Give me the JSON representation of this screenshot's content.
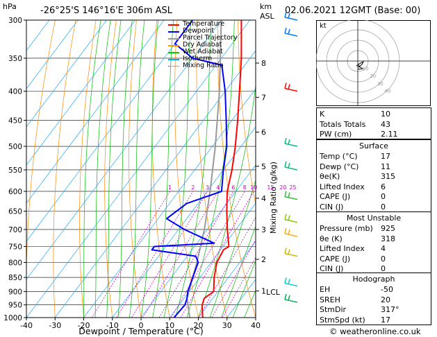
{
  "header": {
    "hpa_label": "hPa",
    "location": "-26°25'S  146°16'E  306m  ASL",
    "km_label": "km",
    "asl_label": "ASL",
    "datetime": "02.06.2021  12GMT  (Base: 00)"
  },
  "axis": {
    "xlabel": "Dewpoint / Temperature (°C)",
    "ylabel_right": "Mixing Ratio (g/kg)",
    "x_ticks": [
      "-40",
      "-30",
      "-20",
      "-10",
      "0",
      "10",
      "20",
      "30",
      "40"
    ],
    "p_ticks": [
      "300",
      "350",
      "400",
      "450",
      "500",
      "550",
      "600",
      "650",
      "700",
      "750",
      "800",
      "850",
      "900",
      "950",
      "1000"
    ],
    "km_ticks": [
      "8",
      "7",
      "6",
      "5",
      "4",
      "3",
      "2",
      "1"
    ],
    "lcl_label": "LCL",
    "mixing_ratio_labels": [
      "1",
      "2",
      "3",
      "4",
      "6",
      "8",
      "10",
      "15",
      "20",
      "25"
    ]
  },
  "legend": {
    "items": [
      {
        "label": "Temperature",
        "color": "#ff0000",
        "dash": false
      },
      {
        "label": "Dewpoint",
        "color": "#0000ff",
        "dash": false
      },
      {
        "label": "Parcel Trajectory",
        "color": "#999999",
        "dash": false
      },
      {
        "label": "Dry Adiabat",
        "color": "#ff9900",
        "dash": false
      },
      {
        "label": "Wet Adiabat",
        "color": "#00cc00",
        "dash": false
      },
      {
        "label": "Isotherm",
        "color": "#00aaff",
        "dash": false
      },
      {
        "label": "Mixing Ratio",
        "color": "#cc00cc",
        "dash": true
      }
    ]
  },
  "chart_data": {
    "type": "skew-t",
    "x_range": [
      -40,
      40
    ],
    "p_range": [
      300,
      1000
    ],
    "temperature": [
      {
        "p": 1000,
        "t": 21.5
      },
      {
        "p": 950,
        "t": 18
      },
      {
        "p": 925,
        "t": 17
      },
      {
        "p": 900,
        "t": 18.5
      },
      {
        "p": 850,
        "t": 15
      },
      {
        "p": 800,
        "t": 12
      },
      {
        "p": 760,
        "t": 11
      },
      {
        "p": 750,
        "t": 12
      },
      {
        "p": 700,
        "t": 7
      },
      {
        "p": 650,
        "t": 2
      },
      {
        "p": 600,
        "t": -3
      },
      {
        "p": 550,
        "t": -7
      },
      {
        "p": 500,
        "t": -12
      },
      {
        "p": 450,
        "t": -18
      },
      {
        "p": 400,
        "t": -25
      },
      {
        "p": 350,
        "t": -33
      },
      {
        "p": 300,
        "t": -43
      }
    ],
    "dewpoint": [
      {
        "p": 1000,
        "t": 11.5
      },
      {
        "p": 950,
        "t": 12
      },
      {
        "p": 925,
        "t": 11
      },
      {
        "p": 900,
        "t": 9.5
      },
      {
        "p": 850,
        "t": 7.5
      },
      {
        "p": 800,
        "t": 5.5
      },
      {
        "p": 780,
        "t": 3
      },
      {
        "p": 760,
        "t": -14
      },
      {
        "p": 750,
        "t": -14
      },
      {
        "p": 740,
        "t": 6
      },
      {
        "p": 700,
        "t": -8
      },
      {
        "p": 670,
        "t": -17
      },
      {
        "p": 630,
        "t": -14
      },
      {
        "p": 600,
        "t": -5
      },
      {
        "p": 550,
        "t": -10
      },
      {
        "p": 500,
        "t": -15
      },
      {
        "p": 450,
        "t": -22
      },
      {
        "p": 400,
        "t": -30
      },
      {
        "p": 360,
        "t": -38
      },
      {
        "p": 350,
        "t": -50
      },
      {
        "p": 330,
        "t": -60
      },
      {
        "p": 300,
        "t": -60
      }
    ],
    "parcel": [
      {
        "p": 1000,
        "t": 17
      },
      {
        "p": 925,
        "t": 11
      },
      {
        "p": 850,
        "t": 7.5
      },
      {
        "p": 800,
        "t": 5
      },
      {
        "p": 700,
        "t": -1
      },
      {
        "p": 600,
        "t": -9
      },
      {
        "p": 500,
        "t": -19
      },
      {
        "p": 400,
        "t": -32
      },
      {
        "p": 300,
        "t": -50
      }
    ]
  },
  "hodograph": {
    "label": "kt",
    "rings": [
      "10",
      "20",
      "30",
      "40"
    ]
  },
  "indices": {
    "top": [
      {
        "label": "K",
        "value": "10"
      },
      {
        "label": "Totals Totals",
        "value": "43"
      },
      {
        "label": "PW (cm)",
        "value": "2.11"
      }
    ],
    "surface": {
      "title": "Surface",
      "rows": [
        {
          "label": "Temp (°C)",
          "value": "17"
        },
        {
          "label": "Dewp (°C)",
          "value": "11"
        },
        {
          "label": "θe(K)",
          "value": "315"
        },
        {
          "label": "Lifted Index",
          "value": "6"
        },
        {
          "label": "CAPE (J)",
          "value": "0"
        },
        {
          "label": "CIN (J)",
          "value": "0"
        }
      ]
    },
    "unstable": {
      "title": "Most Unstable",
      "rows": [
        {
          "label": "Pressure (mb)",
          "value": "925"
        },
        {
          "label": "θe (K)",
          "value": "318"
        },
        {
          "label": "Lifted Index",
          "value": "4"
        },
        {
          "label": "CAPE (J)",
          "value": "0"
        },
        {
          "label": "CIN (J)",
          "value": "0"
        }
      ]
    },
    "hodo": {
      "title": "Hodograph",
      "rows": [
        {
          "label": "EH",
          "value": "-50"
        },
        {
          "label": "SREH",
          "value": "20"
        },
        {
          "label": "StmDir",
          "value": "317°"
        },
        {
          "label": "StmSpd (kt)",
          "value": "17"
        }
      ]
    }
  },
  "copyright": "© weatheronline.co.uk"
}
